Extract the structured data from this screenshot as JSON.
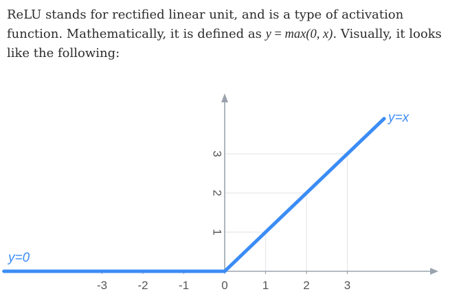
{
  "article": {
    "text_part1": "ReLU stands for rectified linear unit, and is a type of activation function. Mathematically, it is defined as ",
    "formula": {
      "lhs": "y",
      "eq": "=",
      "rhs": "max(0, x)"
    },
    "text_part2": ". Visually, it looks like the following:"
  },
  "chart_data": {
    "type": "line",
    "xlim": [
      -5.4,
      5.4
    ],
    "ylim": [
      -0.3,
      4.4
    ],
    "x_ticks": [
      "-3",
      "-2",
      "-1",
      "0",
      "1",
      "2",
      "3"
    ],
    "y_ticks": [
      "1",
      "2",
      "3"
    ],
    "grid": "dashed guides at x=1,2,3 up to the line and y=1,2,3 to the line",
    "series": [
      {
        "name": "y=0",
        "color": "#3b8cf5",
        "x": [
          -5.4,
          0
        ],
        "y": [
          0,
          0
        ]
      },
      {
        "name": "y=x",
        "color": "#3b8cf5",
        "x": [
          0,
          3.9
        ],
        "y": [
          0,
          3.9
        ]
      }
    ],
    "annotations": [
      "y=0",
      "y=x"
    ],
    "axis_color": "#9aa3ad",
    "tick_color": "#555555"
  }
}
